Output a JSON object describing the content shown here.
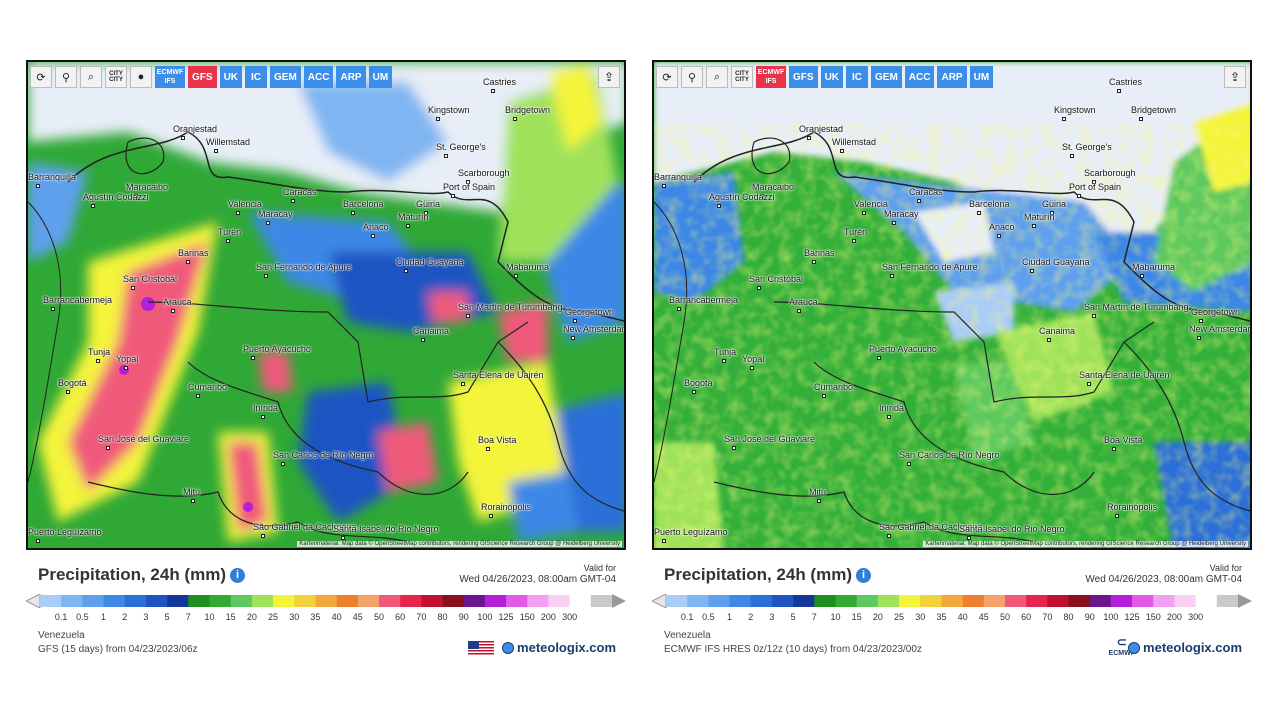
{
  "panels": [
    {
      "id": "gfs",
      "toolbar": {
        "tools": [
          {
            "name": "refresh-icon",
            "glyph": "⟳"
          },
          {
            "name": "location-pin-icon",
            "glyph": "⚲"
          },
          {
            "name": "zoom-icon",
            "glyph": "⌕"
          },
          {
            "name": "city-toggle-icon",
            "glyph": "CITY\nCITY"
          },
          {
            "name": "point-icon",
            "glyph": "●"
          }
        ],
        "models": [
          {
            "label": "ECMWF IFS",
            "active": false,
            "two_line": true
          },
          {
            "label": "GFS",
            "active": true,
            "two_line": false
          },
          {
            "label": "UK",
            "active": false,
            "two_line": false
          },
          {
            "label": "IC",
            "active": false,
            "two_line": false
          },
          {
            "label": "GEM",
            "active": false,
            "two_line": false
          },
          {
            "label": "ACC",
            "active": false,
            "two_line": false
          },
          {
            "label": "ARP",
            "active": false,
            "two_line": false
          },
          {
            "label": "UM",
            "active": false,
            "two_line": false
          }
        ]
      },
      "title": "Precipitation, 24h (mm)",
      "valid_label": "Valid for",
      "valid_time": "Wed 04/26/2023, 08:00am GMT-04",
      "region": "Venezuela",
      "model_run": "GFS (15 days) from 04/23/2023/06z",
      "attribution": "Kartenmaterial: Map data © OpenStreetMap contributors, rendering GIScience Research Group @ Heidelberg University",
      "brand": "meteologix.com",
      "logo": "us-flag"
    },
    {
      "id": "ecmwf",
      "toolbar": {
        "tools": [
          {
            "name": "refresh-icon",
            "glyph": "⟳"
          },
          {
            "name": "location-pin-icon",
            "glyph": "⚲"
          },
          {
            "name": "zoom-icon",
            "glyph": "⌕"
          },
          {
            "name": "city-toggle-icon",
            "glyph": "CITY\nCITY"
          }
        ],
        "models": [
          {
            "label": "ECMWF IFS",
            "active": true,
            "two_line": true
          },
          {
            "label": "GFS",
            "active": false,
            "two_line": false
          },
          {
            "label": "UK",
            "active": false,
            "two_line": false
          },
          {
            "label": "IC",
            "active": false,
            "two_line": false
          },
          {
            "label": "GEM",
            "active": false,
            "two_line": false
          },
          {
            "label": "ACC",
            "active": false,
            "two_line": false
          },
          {
            "label": "ARP",
            "active": false,
            "two_line": false
          },
          {
            "label": "UM",
            "active": false,
            "two_line": false
          }
        ]
      },
      "title": "Precipitation, 24h (mm)",
      "valid_label": "Valid for",
      "valid_time": "Wed 04/26/2023, 08:00am GMT-04",
      "region": "Venezuela",
      "model_run": "ECMWF IFS HRES 0z/12z (10 days) from 04/23/2023/00z",
      "attribution": "Kartenmaterial: Map data © OpenStreetMap contributors, rendering GIScience Research Group @ Heidelberg University",
      "brand": "meteologix.com",
      "logo": "ECMWF"
    }
  ],
  "cities": [
    "Castries",
    "Kingstown",
    "Bridgetown",
    "Oranjestad",
    "Willemstad",
    "St. George's",
    "Scarborough",
    "Port of Spain",
    "Barranquilla",
    "Maracaibo",
    "Caracas",
    "Valencia",
    "Maracay",
    "Barcelona",
    "Güiria",
    "Maturín",
    "Agustín Codazzi",
    "Anaco",
    "Turén",
    "Barinas",
    "San Fernando de Apure",
    "Ciudad Guayana",
    "Mabaruma",
    "San Cristóbal",
    "Barrancabermeja",
    "Arauca",
    "San Martín de Turumbang",
    "Georgetown",
    "New Amsterdam",
    "Canaima",
    "Puerto Ayacucho",
    "Tunja",
    "Yopal",
    "Bogotá",
    "Cumaribo",
    "Santa Elena de Uairén",
    "Inírida",
    "San José del Guaviare",
    "Boa Vista",
    "San Carlos de Río Negro",
    "Mitú",
    "Rorainópolis",
    "São Gabriel da Cachoeira",
    "Santa Isabel do Rio Negro",
    "Puerto Leguízamo"
  ],
  "legend": {
    "ticks": [
      "0.1",
      "0.5",
      "1",
      "2",
      "3",
      "5",
      "7",
      "10",
      "15",
      "20",
      "25",
      "30",
      "35",
      "40",
      "45",
      "50",
      "60",
      "70",
      "80",
      "90",
      "100",
      "125",
      "150",
      "200",
      "300"
    ],
    "colors": [
      "#a9cdf6",
      "#7fb6f1",
      "#5ea0ee",
      "#3e88e6",
      "#2c6fd8",
      "#1f55c2",
      "#14389a",
      "#1e8e1e",
      "#33a833",
      "#5ec95e",
      "#9fe25a",
      "#f4f43a",
      "#f2d23a",
      "#f1a93a",
      "#ee7f2c",
      "#f3a36a",
      "#f05a7a",
      "#e6254f",
      "#c2102f",
      "#8a0f1f",
      "#6b168c",
      "#b51fd6",
      "#e05ae8",
      "#f3a0f0",
      "#f7d0f4",
      "#ffffff",
      "#c9c9c9"
    ]
  }
}
